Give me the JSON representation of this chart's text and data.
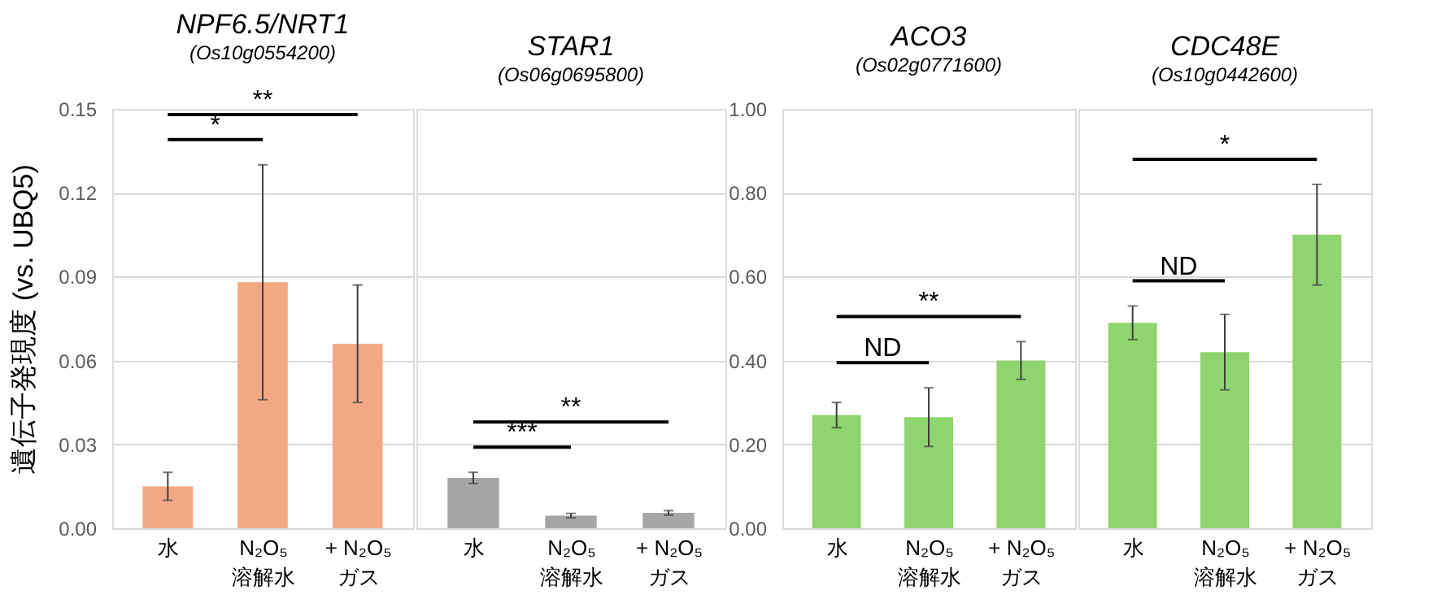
{
  "chart_data": [
    {
      "type": "bar",
      "title": "NPF6.5/NRT1",
      "subtitle": "(Os10g0554200)",
      "ylabel": "遺伝子発現度 (vs. UBQ5)",
      "categories": [
        "水",
        "N₂O₅\n溶解水",
        "+ N₂O₅\nガス"
      ],
      "series": [
        {
          "color": "#f2a983",
          "values": [
            0.015,
            0.088,
            0.066
          ],
          "errors": [
            0.005,
            0.042,
            0.021
          ]
        }
      ],
      "ylim": [
        0,
        0.15
      ],
      "yticks": [
        {
          "value": 0,
          "label": "0.00"
        },
        0.03,
        0.06,
        0.09,
        0.12,
        0.15
      ],
      "grid": "y",
      "annotations": [
        "*",
        "**"
      ]
    },
    {
      "type": "bar",
      "title": "STAR1",
      "subtitle": "(Os06g0695800)",
      "categories": [
        "水",
        "N₂O₅\n溶解水",
        "+ N₂O₅\nガス"
      ],
      "series": [
        {
          "color": "#a6a6a6",
          "values": [
            0.018,
            0.0045,
            0.0055
          ],
          "errors": [
            0.002,
            0.0008,
            0.0008
          ]
        }
      ],
      "ylim": [
        0,
        0.15
      ],
      "yticks": [
        0,
        0.03,
        0.06,
        0.09,
        0.12,
        0.15
      ],
      "grid": "y",
      "tick_labels": "x",
      "annotations": [
        "***",
        "**"
      ]
    },
    {
      "type": "bar",
      "title": "ACO3",
      "subtitle": "(Os02g0771600)",
      "categories": [
        "水",
        "N₂O₅\n溶解水",
        "+ N₂O₅\nガス"
      ],
      "series": [
        {
          "color": "#8fd46e",
          "values": [
            0.27,
            0.265,
            0.4
          ],
          "errors": [
            0.03,
            0.07,
            0.045
          ]
        }
      ],
      "ylim": [
        0,
        1
      ],
      "yticks": [
        {
          "value": 0,
          "label": "0.00"
        },
        {
          "value": 0.2,
          "label": "0.20"
        },
        {
          "value": 0.4,
          "label": "0.40"
        },
        {
          "value": 0.6,
          "label": "0.60"
        },
        {
          "value": 0.8,
          "label": "0.80"
        },
        {
          "value": 1,
          "label": "1.00"
        }
      ],
      "grid": "y",
      "annotations": [
        "ND",
        "**"
      ]
    },
    {
      "type": "bar",
      "title": "CDC48E",
      "subtitle": "(Os10g0442600)",
      "categories": [
        "水",
        "N₂O₅\n溶解水",
        "+ N₂O₅\nガス"
      ],
      "series": [
        {
          "color": "#8fd46e",
          "values": [
            0.49,
            0.42,
            0.7
          ],
          "errors": [
            0.04,
            0.09,
            0.12
          ]
        }
      ],
      "ylim": [
        0,
        1
      ],
      "yticks": [
        0,
        0.2,
        0.4,
        0.6,
        0.8,
        1
      ],
      "grid": "y",
      "tick_labels": "x",
      "annotations": [
        "ND",
        "*"
      ]
    }
  ]
}
